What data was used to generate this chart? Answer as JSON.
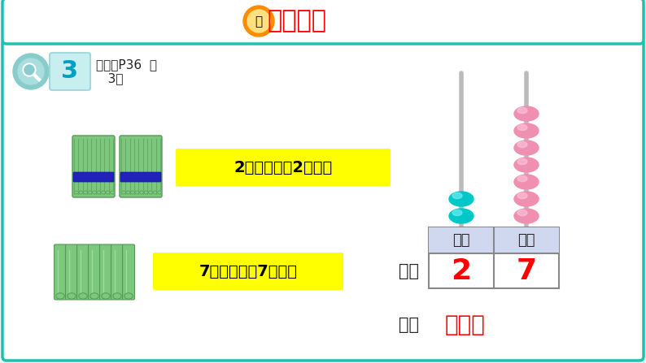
{
  "bg_color": "#e8f8f5",
  "header_bg": "#ffffff",
  "header_border": "#20c0b0",
  "header_title": "探索新知",
  "header_title_color": "#ff0000",
  "header_icon_color": "#ff8c00",
  "main_bg": "#f5fffe",
  "label3_bg": "#c8eef0",
  "label3_border": "#a0d8dc",
  "label3_text": "3",
  "label3_text_color": "#00a0c0",
  "subtitle_text": "（教材P36  例\n   3）",
  "subtitle_color": "#222222",
  "yellow_box1_text": "2捆小棒表示2个十。",
  "yellow_box2_text": "7根小棒表示7个一。",
  "yellow_box_bg": "#ffff00",
  "yellow_box_text_color": "#000000",
  "abacus_rod_color": "#cccccc",
  "abacus_bead_tens_color": "#00c8c8",
  "abacus_bead_ones_color": "#f090b0",
  "abacus_bead_ones_count": 7,
  "abacus_bead_tens_count": 2,
  "table_border_color": "#888888",
  "table_header_bg": "#d0d8f0",
  "table_tens_label": "十位",
  "table_ones_label": "个位",
  "table_tens_value": "2",
  "table_ones_value": "7",
  "table_value_color": "#ff0000",
  "write_label": "写作",
  "read_label": "读作",
  "read_value": "二十七",
  "read_value_color": "#ff0000",
  "label_text_color": "#222222",
  "stick_color": "#7cc87c",
  "stick_dark": "#559955",
  "stick_band_color": "#2222bb",
  "mag_outer": "#88cccc",
  "mag_inner": "#aadddd"
}
